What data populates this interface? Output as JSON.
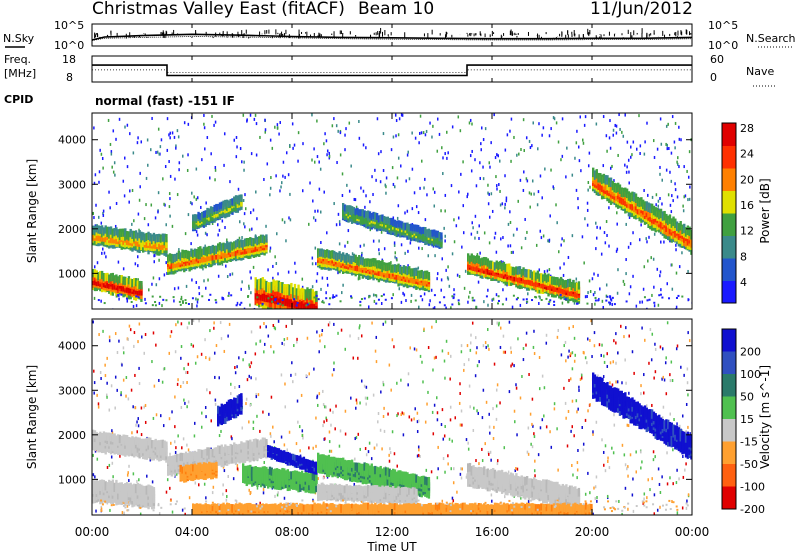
{
  "header": {
    "title": "Christmas Valley East (fitACF)",
    "beam": "Beam 10",
    "date": "11/Jun/2012"
  },
  "noise_panel": {
    "left_label": "N.Sky",
    "right_label": "N.Search",
    "left_ticks": [
      "10^5",
      "10^0"
    ],
    "right_ticks": [
      "10^5",
      "10^0"
    ]
  },
  "freq_panel": {
    "left_label_line1": "Freq.",
    "left_label_line2": "[MHz]",
    "right_label": "Nave",
    "left_ticks": [
      "18",
      "8"
    ],
    "right_ticks": [
      "60",
      "0"
    ]
  },
  "cpid": {
    "label": "CPID",
    "text": "normal (fast) -151 IF"
  },
  "chart_data": [
    {
      "type": "line",
      "name": "noise",
      "x_hours": [
        0,
        0.5,
        2,
        4,
        6,
        8,
        10,
        12,
        14,
        16,
        18,
        20,
        22,
        24
      ],
      "n_sky_log": [
        0.9,
        1.6,
        1.9,
        2.2,
        2.0,
        1.7,
        1.5,
        1.4,
        1.3,
        1.2,
        1.2,
        1.3,
        1.3,
        1.5
      ],
      "n_search_log": [
        0.8,
        1.3,
        1.5,
        1.7,
        1.6,
        1.4,
        1.2,
        1.1,
        1.0,
        0.9,
        0.9,
        1.0,
        1.0,
        1.2
      ]
    },
    {
      "type": "line",
      "name": "frequency",
      "x_hours": [
        0,
        3.0,
        3.0,
        15.0,
        15.0,
        24
      ],
      "freq_mhz": [
        14.5,
        14.5,
        10.5,
        10.5,
        14.5,
        14.5
      ],
      "nave_x_hours": [
        0,
        3.0,
        3.0,
        15.0,
        15.0,
        24
      ],
      "nave": [
        28,
        28,
        22,
        22,
        28,
        28
      ]
    },
    {
      "type": "heatmap",
      "name": "power",
      "xlabel": "",
      "ylabel": "Slant Range [km]",
      "xlim": [
        0,
        24
      ],
      "ylim": [
        200,
        4600
      ],
      "yticks": [
        "1000",
        "2000",
        "3000",
        "4000"
      ],
      "colorbar_label": "Power [dB]",
      "colorbar_ticks": [
        "4",
        "8",
        "12",
        "16",
        "20",
        "24",
        "28"
      ],
      "colorbar_colors": [
        "#1a1aff",
        "#2255cc",
        "#3a8a8a",
        "#40a040",
        "#e0e000",
        "#ff8000",
        "#ff3000",
        "#e00000"
      ],
      "bands": [
        {
          "start": 0.0,
          "end": 3.0,
          "r0": 1950,
          "r1": 1720,
          "width": 260,
          "level": 0.65
        },
        {
          "start": 0.0,
          "end": 2.0,
          "r0": 950,
          "r1": 700,
          "width": 260,
          "level": 0.9
        },
        {
          "start": 3.0,
          "end": 7.0,
          "r0": 1300,
          "r1": 1750,
          "width": 260,
          "level": 0.7
        },
        {
          "start": 4.0,
          "end": 6.0,
          "r0": 2200,
          "r1": 2700,
          "width": 200,
          "level": 0.5
        },
        {
          "start": 6.5,
          "end": 9.0,
          "r0": 700,
          "r1": 400,
          "width": 400,
          "level": 0.95
        },
        {
          "start": 9.0,
          "end": 13.5,
          "r0": 1450,
          "r1": 900,
          "width": 260,
          "level": 0.7
        },
        {
          "start": 10.0,
          "end": 14.0,
          "r0": 2450,
          "r1": 1800,
          "width": 200,
          "level": 0.45
        },
        {
          "start": 15.0,
          "end": 19.5,
          "r0": 1300,
          "r1": 650,
          "width": 260,
          "level": 0.8
        },
        {
          "start": 20.0,
          "end": 24.0,
          "r0": 3200,
          "r1": 1800,
          "width": 320,
          "level": 0.75
        }
      ]
    },
    {
      "type": "heatmap",
      "name": "velocity",
      "xlabel": "Time UT",
      "ylabel": "Slant Range [km]",
      "xlim": [
        0,
        24
      ],
      "ylim": [
        200,
        4600
      ],
      "xticks": [
        "00:00",
        "04:00",
        "08:00",
        "12:00",
        "16:00",
        "20:00",
        "00:00"
      ],
      "yticks": [
        "1000",
        "2000",
        "3000",
        "4000"
      ],
      "colorbar_label": "Velocity [m s^-1]",
      "colorbar_ticks": [
        "200",
        "100",
        "50",
        "15",
        "-15",
        "-50",
        "-100",
        "-200"
      ],
      "colorbar_colors": [
        "#1010d0",
        "#3050c0",
        "#2a7a6a",
        "#50c050",
        "#c8c8c8",
        "#ffa030",
        "#ff6010",
        "#e00000"
      ],
      "bands": [
        {
          "start": 0.0,
          "end": 3.0,
          "r0": 1950,
          "r1": 1720,
          "width": 260,
          "vel": "grey"
        },
        {
          "start": 0.0,
          "end": 2.5,
          "r0": 850,
          "r1": 700,
          "width": 300,
          "vel": "grey"
        },
        {
          "start": 3.0,
          "end": 7.0,
          "r0": 1400,
          "r1": 1800,
          "width": 260,
          "vel": "grey"
        },
        {
          "start": 3.5,
          "end": 5.0,
          "r0": 1200,
          "r1": 1300,
          "width": 200,
          "vel": "orange"
        },
        {
          "start": 5.0,
          "end": 6.0,
          "r0": 2500,
          "r1": 2800,
          "width": 250,
          "vel": "blue"
        },
        {
          "start": 6.0,
          "end": 9.0,
          "r0": 1200,
          "r1": 1000,
          "width": 250,
          "vel": "green"
        },
        {
          "start": 7.0,
          "end": 9.0,
          "r0": 1700,
          "r1": 1300,
          "width": 150,
          "vel": "blue"
        },
        {
          "start": 9.0,
          "end": 13.5,
          "r0": 1450,
          "r1": 900,
          "width": 260,
          "vel": "green"
        },
        {
          "start": 9.0,
          "end": 13.0,
          "r0": 800,
          "r1": 700,
          "width": 200,
          "vel": "grey"
        },
        {
          "start": 15.0,
          "end": 19.5,
          "r0": 1200,
          "r1": 650,
          "width": 280,
          "vel": "grey"
        },
        {
          "start": 20.0,
          "end": 24.0,
          "r0": 3200,
          "r1": 1800,
          "width": 320,
          "vel": "blue"
        },
        {
          "start": 4.0,
          "end": 20.0,
          "r0": 350,
          "r1": 350,
          "width": 200,
          "vel": "orange"
        }
      ]
    }
  ]
}
